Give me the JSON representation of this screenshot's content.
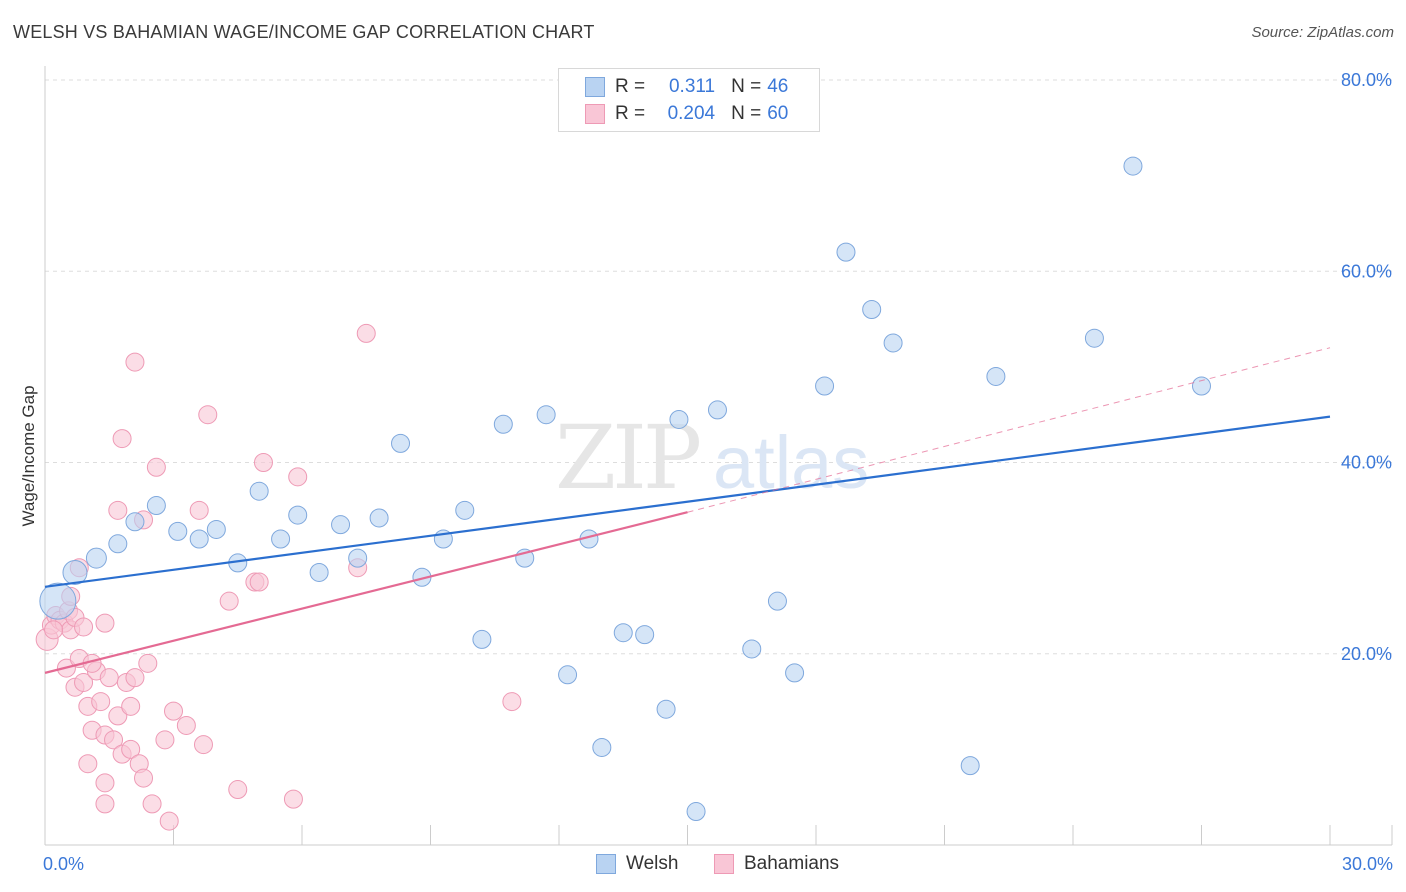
{
  "header": {
    "title": "WELSH VS BAHAMIAN WAGE/INCOME GAP CORRELATION CHART",
    "source": "Source: ZipAtlas.com"
  },
  "watermark": {
    "zip": "ZIP",
    "atlas": "atlas"
  },
  "legend_top": {
    "r_label": "R =",
    "n_label": "N =",
    "rows": [
      {
        "r": "0.311",
        "n": "46"
      },
      {
        "r": "0.204",
        "n": "60"
      }
    ]
  },
  "legend_bottom": {
    "welsh": "Welsh",
    "bahamians": "Bahamians"
  },
  "colors": {
    "welsh_fill": "#b9d3f2",
    "welsh_stroke": "#7fa8dd",
    "welsh_line": "#2b6fcf",
    "bah_fill": "#f9c6d6",
    "bah_stroke": "#ee9ab5",
    "bah_line": "#e46a93",
    "axis_text": "#3b78d8",
    "grid": "#dddddd"
  },
  "chart_data": {
    "type": "scatter",
    "title": "WELSH VS BAHAMIAN WAGE/INCOME GAP CORRELATION CHART",
    "xlabel": "",
    "ylabel": "Wage/Income Gap",
    "xlim": [
      0,
      30
    ],
    "ylim": [
      0,
      80
    ],
    "x_tick_labels": [
      "0.0%",
      "30.0%"
    ],
    "y_tick_labels": [
      {
        "value": 20,
        "label": "20.0%"
      },
      {
        "value": 40,
        "label": "40.0%"
      },
      {
        "value": 60,
        "label": "60.0%"
      },
      {
        "value": 80,
        "label": "80.0%"
      }
    ],
    "grid": true,
    "series": [
      {
        "name": "Welsh",
        "r": 0.311,
        "n": 46,
        "trend": {
          "x0": 0,
          "y0": 27.0,
          "x1": 30,
          "y1": 44.8
        },
        "points": [
          [
            0.3,
            25.5,
            18
          ],
          [
            0.7,
            28.5,
            12
          ],
          [
            1.2,
            30.0,
            10
          ],
          [
            1.7,
            31.5,
            9
          ],
          [
            2.1,
            33.8,
            9
          ],
          [
            2.6,
            35.5,
            9
          ],
          [
            3.1,
            32.8,
            9
          ],
          [
            3.6,
            32.0,
            9
          ],
          [
            4.0,
            33.0,
            9
          ],
          [
            4.5,
            29.5,
            9
          ],
          [
            5.0,
            37.0,
            9
          ],
          [
            5.5,
            32.0,
            9
          ],
          [
            5.9,
            34.5,
            9
          ],
          [
            6.4,
            28.5,
            9
          ],
          [
            6.9,
            33.5,
            9
          ],
          [
            7.3,
            30.0,
            9
          ],
          [
            7.8,
            34.2,
            9
          ],
          [
            8.3,
            42.0,
            9
          ],
          [
            8.8,
            28.0,
            9
          ],
          [
            9.3,
            32.0,
            9
          ],
          [
            9.8,
            35.0,
            9
          ],
          [
            10.2,
            21.5,
            9
          ],
          [
            10.7,
            44.0,
            9
          ],
          [
            11.2,
            30.0,
            9
          ],
          [
            11.7,
            45.0,
            9
          ],
          [
            12.2,
            17.8,
            9
          ],
          [
            12.7,
            32.0,
            9
          ],
          [
            13.0,
            10.2,
            9
          ],
          [
            13.5,
            22.2,
            9
          ],
          [
            14.0,
            22.0,
            9
          ],
          [
            14.5,
            14.2,
            9
          ],
          [
            14.8,
            44.5,
            9
          ],
          [
            15.2,
            3.5,
            9
          ],
          [
            15.7,
            45.5,
            9
          ],
          [
            16.5,
            20.5,
            9
          ],
          [
            17.1,
            25.5,
            9
          ],
          [
            17.5,
            18.0,
            9
          ],
          [
            18.2,
            48.0,
            9
          ],
          [
            18.7,
            62.0,
            9
          ],
          [
            19.3,
            56.0,
            9
          ],
          [
            19.8,
            52.5,
            9
          ],
          [
            21.6,
            8.3,
            9
          ],
          [
            22.2,
            49.0,
            9
          ],
          [
            24.5,
            53.0,
            9
          ],
          [
            25.4,
            71.0,
            9
          ],
          [
            27.0,
            48.0,
            9
          ]
        ]
      },
      {
        "name": "Bahamians",
        "r": 0.204,
        "n": 60,
        "trend": {
          "x0": 0,
          "y0": 18.0,
          "x1": 15,
          "y1": 34.8
        },
        "trend_dashed": {
          "x0": 15,
          "y0": 34.8,
          "x1": 30,
          "y1": 52.0
        },
        "points": [
          [
            0.05,
            21.5,
            11
          ],
          [
            0.15,
            23.0,
            9
          ],
          [
            0.25,
            24.0,
            9
          ],
          [
            0.35,
            23.5,
            9
          ],
          [
            0.45,
            23.2,
            9
          ],
          [
            0.55,
            24.5,
            9
          ],
          [
            0.6,
            22.5,
            9
          ],
          [
            0.7,
            23.8,
            9
          ],
          [
            0.8,
            29.0,
            9
          ],
          [
            0.5,
            18.5,
            9
          ],
          [
            0.7,
            16.5,
            9
          ],
          [
            0.8,
            19.5,
            9
          ],
          [
            0.9,
            17.0,
            9
          ],
          [
            1.0,
            14.5,
            9
          ],
          [
            1.1,
            12.0,
            9
          ],
          [
            1.2,
            18.2,
            9
          ],
          [
            1.3,
            15.0,
            9
          ],
          [
            1.4,
            11.5,
            9
          ],
          [
            1.5,
            17.5,
            9
          ],
          [
            1.0,
            8.5,
            9
          ],
          [
            1.4,
            6.5,
            9
          ],
          [
            1.4,
            4.3,
            9
          ],
          [
            1.6,
            11.0,
            9
          ],
          [
            1.7,
            13.5,
            9
          ],
          [
            1.8,
            9.5,
            9
          ],
          [
            1.9,
            17.0,
            9
          ],
          [
            2.0,
            10.0,
            9
          ],
          [
            2.1,
            17.5,
            9
          ],
          [
            2.2,
            8.5,
            9
          ],
          [
            2.3,
            7.0,
            9
          ],
          [
            1.7,
            35.0,
            9
          ],
          [
            1.8,
            42.5,
            9
          ],
          [
            2.0,
            14.5,
            9
          ],
          [
            2.1,
            50.5,
            9
          ],
          [
            2.3,
            34.0,
            9
          ],
          [
            2.4,
            19.0,
            9
          ],
          [
            2.5,
            4.3,
            9
          ],
          [
            2.6,
            39.5,
            9
          ],
          [
            2.8,
            11.0,
            9
          ],
          [
            2.9,
            2.5,
            9
          ],
          [
            3.0,
            14.0,
            9
          ],
          [
            3.3,
            12.5,
            9
          ],
          [
            3.6,
            35.0,
            9
          ],
          [
            3.7,
            10.5,
            9
          ],
          [
            3.8,
            45.0,
            9
          ],
          [
            4.3,
            25.5,
            9
          ],
          [
            4.5,
            5.8,
            9
          ],
          [
            4.9,
            27.5,
            9
          ],
          [
            5.0,
            27.5,
            9
          ],
          [
            5.1,
            40.0,
            9
          ],
          [
            5.8,
            4.8,
            9
          ],
          [
            5.9,
            38.5,
            9
          ],
          [
            7.3,
            29.0,
            9
          ],
          [
            7.5,
            53.5,
            9
          ],
          [
            10.9,
            15.0,
            9
          ],
          [
            1.4,
            23.2,
            9
          ],
          [
            0.9,
            22.8,
            9
          ],
          [
            0.2,
            22.5,
            9
          ],
          [
            1.1,
            19.0,
            9
          ],
          [
            0.6,
            26.0,
            9
          ]
        ]
      }
    ]
  }
}
